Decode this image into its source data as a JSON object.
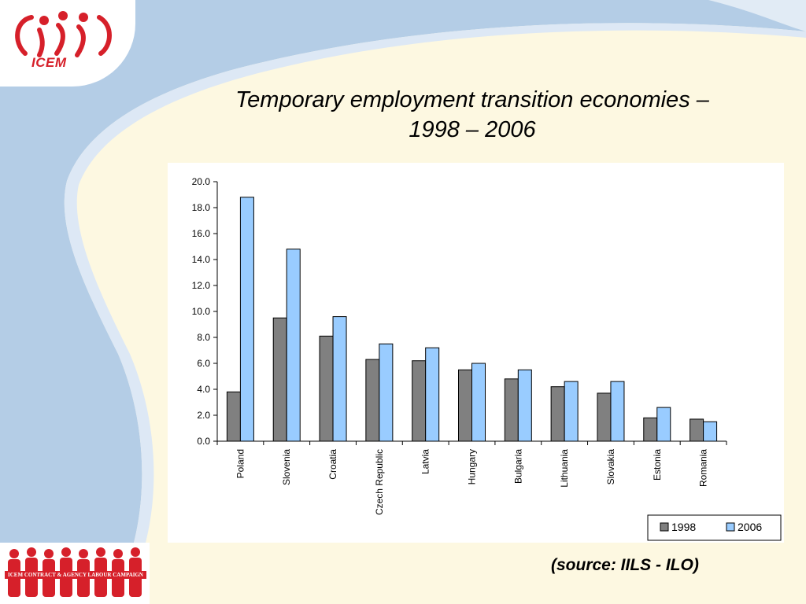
{
  "slide": {
    "title_line1": "Temporary employment transition economies –",
    "title_line2": "1998 – 2006",
    "source": "(source: IILS - ILO)",
    "logo_text": "ICEM",
    "campaign_text": "ICEM CONTRACT & AGENCY LABOUR CAMPAIGN"
  },
  "colors": {
    "background": "#fdf8e1",
    "swoosh": "#b4cde6",
    "brand_red": "#d6202a",
    "series_1998": "#808080",
    "series_2006": "#99ccff"
  },
  "chart_data": {
    "type": "bar",
    "title": "",
    "xlabel": "",
    "ylabel": "",
    "ylim": [
      0,
      20
    ],
    "yticks": [
      "0.0",
      "2.0",
      "4.0",
      "6.0",
      "8.0",
      "10.0",
      "12.0",
      "14.0",
      "16.0",
      "18.0",
      "20.0"
    ],
    "categories": [
      "Poland",
      "Slovenia",
      "Croatia",
      "Czech Republic",
      "Latvia",
      "Hungary",
      "Bulgaria",
      "Lithuania",
      "Slovakia",
      "Estonia",
      "Romania"
    ],
    "series": [
      {
        "name": "1998",
        "color": "#808080",
        "values": [
          3.8,
          9.5,
          8.1,
          6.3,
          6.2,
          5.5,
          4.8,
          4.2,
          3.7,
          1.8,
          1.7
        ]
      },
      {
        "name": "2006",
        "color": "#99ccff",
        "values": [
          18.8,
          14.8,
          9.6,
          7.5,
          7.2,
          6.0,
          5.5,
          4.6,
          4.6,
          2.6,
          1.5
        ]
      }
    ],
    "grid": false,
    "legend_position": "bottom-right"
  }
}
